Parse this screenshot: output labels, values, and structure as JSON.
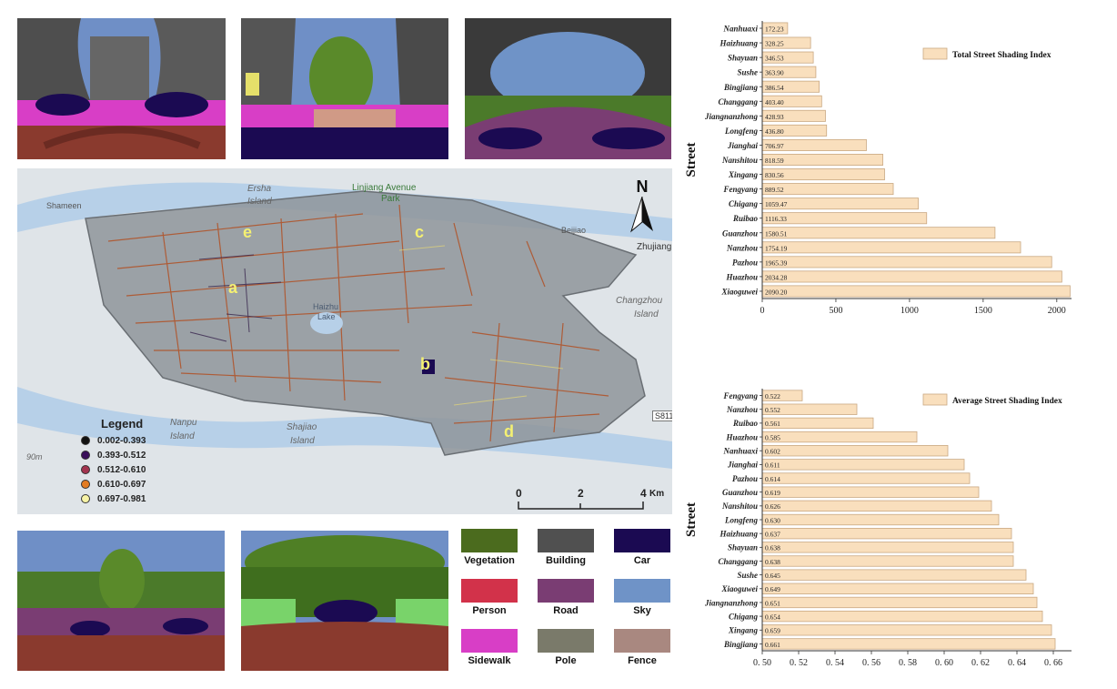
{
  "panoramas": {
    "a": {
      "label": "a"
    },
    "b": {
      "label": "b"
    },
    "c": {
      "label": "c"
    },
    "d": {
      "label": "d"
    },
    "e": {
      "label": "e"
    }
  },
  "map": {
    "labels": {
      "shamee": "Shameen",
      "ersha": "Ersha",
      "ersha_island": "Island",
      "linjiang": "Linjiang Avenue",
      "park": "Park",
      "beijiao": "Beijiao",
      "zhujiang": "Zhujiang",
      "changzhou": "Changzhou",
      "changzhou_island": "Island",
      "haizhu": "Haizhu",
      "lake": "Lake",
      "nanpu": "Nanpu",
      "nanpu_island": "Island",
      "shajiao": "Shajiao",
      "shajiao_island": "Island",
      "s811": "S811",
      "scale_m": "90m"
    },
    "markers": {
      "a": "a",
      "b": "b",
      "c": "c",
      "d": "d",
      "e": "e"
    },
    "north": "N",
    "scalebar": {
      "ticks": [
        "0",
        "2",
        "4"
      ],
      "unit": "Km"
    },
    "legend": {
      "title": "Legend",
      "items": [
        {
          "label": "0.002-0.393",
          "color": "#111111"
        },
        {
          "label": "0.393-0.512",
          "color": "#3a0f5a"
        },
        {
          "label": "0.512-0.610",
          "color": "#a3344f"
        },
        {
          "label": "0.610-0.697",
          "color": "#e27b22"
        },
        {
          "label": "0.697-0.981",
          "color": "#f7f3a6"
        }
      ]
    }
  },
  "segmentation_legend": [
    {
      "label": "Vegetation",
      "color": "#4b6b1e"
    },
    {
      "label": "Building",
      "color": "#505050"
    },
    {
      "label": "Car",
      "color": "#1b0a52"
    },
    {
      "label": "Person",
      "color": "#d2324a"
    },
    {
      "label": "Road",
      "color": "#7a3d73"
    },
    {
      "label": "Sky",
      "color": "#6f93c7"
    },
    {
      "label": "Sidewalk",
      "color": "#d83ec6"
    },
    {
      "label": "Pole",
      "color": "#7a7a6a"
    },
    {
      "label": "Fence",
      "color": "#a98880"
    }
  ],
  "chart_data": [
    {
      "type": "bar",
      "orientation": "horizontal",
      "ylabel": "Street",
      "legend": "Total Street Shading Index",
      "legend_position": "top-right",
      "xlim": [
        0,
        2100
      ],
      "xticks": [
        "0",
        "500",
        "1000",
        "1500",
        "2000"
      ],
      "categories": [
        "Nanhuaxi",
        "Haizhuang",
        "Shayuan",
        "Sushe",
        "Bingjiang",
        "Changgang",
        "Jiangnanzhong",
        "Longfeng",
        "Jianghai",
        "Nanshitou",
        "Xingang",
        "Fengyang",
        "Chigang",
        "Ruibao",
        "Guanzhou",
        "Nanzhou",
        "Pazhou",
        "Huazhou",
        "Xiaoguwei"
      ],
      "values": [
        172.23,
        328.25,
        346.53,
        363.9,
        386.54,
        403.4,
        428.93,
        436.8,
        706.97,
        818.59,
        830.56,
        889.52,
        1059.47,
        1116.33,
        1580.51,
        1754.19,
        1965.39,
        2034.28,
        2090.2
      ],
      "value_labels": [
        "172.23",
        "328.25",
        "346.53",
        "363.90",
        "386.54",
        "403.40",
        "428.93",
        "436.80",
        "706.97",
        "818.59",
        "830.56",
        "889.52",
        "1059.47",
        "1116.33",
        "1580.51",
        "1754.19",
        "1965.39",
        "2034.28",
        "2090.20"
      ]
    },
    {
      "type": "bar",
      "orientation": "horizontal",
      "ylabel": "Street",
      "legend": "Average Street Shading Index",
      "legend_position": "top-right",
      "xlim": [
        0.5,
        0.67
      ],
      "xticks": [
        "0. 50",
        "0. 52",
        "0. 54",
        "0. 56",
        "0. 58",
        "0. 60",
        "0. 62",
        "0. 64",
        "0. 66"
      ],
      "categories": [
        "Fengyang",
        "Nanzhou",
        "Ruibao",
        "Huazhou",
        "Nanhuaxi",
        "Jianghai",
        "Pazhou",
        "Guanzhou",
        "Nanshitou",
        "Longfeng",
        "Haizhuang",
        "Shayuan",
        "Changgang",
        "Sushe",
        "Xiaoguwei",
        "Jiangnanzhong",
        "Chigang",
        "Xingang",
        "Bingjiang"
      ],
      "values": [
        0.522,
        0.552,
        0.561,
        0.585,
        0.602,
        0.611,
        0.614,
        0.619,
        0.626,
        0.63,
        0.637,
        0.638,
        0.638,
        0.645,
        0.649,
        0.651,
        0.654,
        0.659,
        0.661
      ],
      "value_labels": [
        "0.522",
        "0.552",
        "0.561",
        "0.585",
        "0.602",
        "0.611",
        "0.614",
        "0.619",
        "0.626",
        "0.630",
        "0.637",
        "0.638",
        "0.638",
        "0.645",
        "0.649",
        "0.651",
        "0.654",
        "0.659",
        "0.661"
      ]
    }
  ]
}
